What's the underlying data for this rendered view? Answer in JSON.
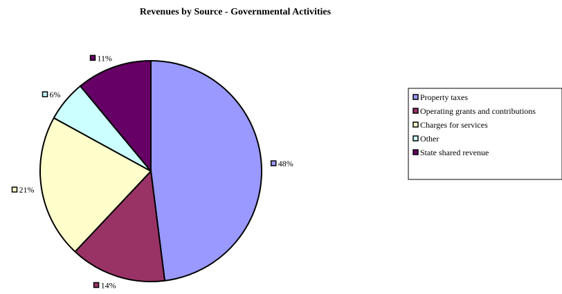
{
  "chart_data": {
    "type": "pie",
    "title": "Revenues by Source - Governmental Activities",
    "slices": [
      {
        "name": "Property taxes",
        "value": 48,
        "label": "48%",
        "color": "#9999ff"
      },
      {
        "name": "Operating grants and contributions",
        "value": 14,
        "label": "14%",
        "color": "#993366"
      },
      {
        "name": "Charges for services",
        "value": 21,
        "label": "21%",
        "color": "#ffffcc"
      },
      {
        "name": "Other",
        "value": 6,
        "label": "6%",
        "color": "#ccffff"
      },
      {
        "name": "State shared revenue",
        "value": 11,
        "label": "11%",
        "color": "#660066"
      }
    ],
    "legend_position": "right"
  }
}
